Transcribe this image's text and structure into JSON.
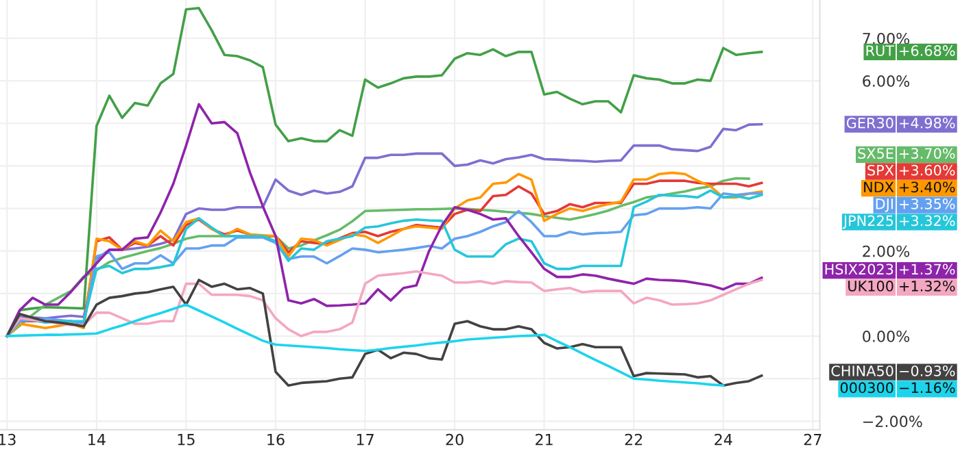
{
  "chart_data": {
    "type": "line",
    "categories": [
      "13",
      null,
      null,
      null,
      null,
      null,
      null,
      "14",
      null,
      null,
      null,
      null,
      null,
      null,
      "15",
      null,
      null,
      null,
      null,
      null,
      null,
      "16",
      null,
      null,
      null,
      null,
      null,
      null,
      "17",
      null,
      null,
      null,
      null,
      null,
      null,
      "20",
      null,
      null,
      null,
      null,
      null,
      null,
      "21",
      null,
      null,
      null,
      null,
      null,
      null,
      "22",
      null,
      null,
      null,
      null,
      null,
      null,
      "24",
      null,
      null,
      null,
      null,
      null,
      null,
      "27"
    ],
    "ylim": [
      -2.2,
      7.9
    ],
    "yticks": [
      {
        "value": -2,
        "label": "−2.00%"
      },
      {
        "value": -1,
        "label": null
      },
      {
        "value": 0,
        "label": "0.00%"
      },
      {
        "value": 1,
        "label": null
      },
      {
        "value": 2,
        "label": "2.00%"
      },
      {
        "value": 3,
        "label": null
      },
      {
        "value": 4,
        "label": null
      },
      {
        "value": 5,
        "label": null
      },
      {
        "value": 6,
        "label": "6.00%"
      },
      {
        "value": 7,
        "label": "7.00%"
      }
    ],
    "grid": true,
    "legend": "right",
    "line_style": "solid",
    "marker": "none",
    "series": [
      {
        "name": "RUT",
        "color": "#43a047",
        "values": [
          0,
          0.61,
          0.65,
          0.68,
          0.67,
          0.66,
          0.65,
          4.94,
          5.65,
          5.13,
          5.48,
          5.42,
          5.94,
          6.16,
          7.68,
          7.71,
          7.19,
          6.61,
          6.58,
          6.48,
          6.32,
          4.97,
          4.58,
          4.65,
          4.58,
          4.58,
          4.84,
          4.71,
          6.03,
          5.84,
          5.94,
          6.06,
          6.1,
          6.1,
          6.13,
          6.52,
          6.65,
          6.61,
          6.74,
          6.58,
          6.68,
          6.68,
          5.68,
          5.74,
          5.58,
          5.45,
          5.52,
          5.52,
          5.26,
          6.13,
          6.06,
          6.03,
          5.94,
          5.94,
          6.03,
          6.0,
          6.77,
          6.61,
          6.65,
          6.68,
          null,
          null,
          null,
          null
        ]
      },
      {
        "name": "GER30",
        "color": "#7e6fd0",
        "values": [
          0,
          0.45,
          0.44,
          0.42,
          0.45,
          0.48,
          0.45,
          1.81,
          2.03,
          2.03,
          2.06,
          2.1,
          2.17,
          2.26,
          2.87,
          3.0,
          2.97,
          2.97,
          3.03,
          3.03,
          3.03,
          3.68,
          3.42,
          3.32,
          3.42,
          3.35,
          3.39,
          3.52,
          4.19,
          4.19,
          4.26,
          4.26,
          4.29,
          4.29,
          4.29,
          4.0,
          4.03,
          4.13,
          4.06,
          4.16,
          4.2,
          4.26,
          4.16,
          4.15,
          4.13,
          4.12,
          4.1,
          4.12,
          4.13,
          4.48,
          4.48,
          4.48,
          4.39,
          4.37,
          4.35,
          4.45,
          4.87,
          4.84,
          4.97,
          4.98,
          null,
          null,
          null,
          null
        ]
      },
      {
        "name": "SX5E",
        "color": "#66bb6a",
        "values": [
          0,
          0.25,
          0.5,
          0.74,
          0.9,
          1.06,
          1.4,
          1.55,
          1.74,
          1.84,
          1.92,
          2.0,
          2.07,
          2.17,
          2.29,
          2.35,
          2.35,
          2.35,
          2.35,
          2.35,
          2.35,
          2.35,
          2.06,
          2.13,
          2.25,
          2.37,
          2.5,
          2.7,
          2.94,
          2.95,
          2.96,
          2.97,
          2.98,
          2.98,
          2.99,
          3.0,
          2.99,
          2.97,
          2.95,
          2.92,
          2.9,
          2.87,
          2.82,
          2.78,
          2.74,
          2.8,
          2.87,
          2.95,
          3.06,
          3.15,
          3.26,
          3.3,
          3.35,
          3.4,
          3.47,
          3.52,
          3.65,
          3.71,
          3.7,
          null,
          null,
          null,
          null,
          null
        ]
      },
      {
        "name": "SPX",
        "color": "#e53935",
        "values": [
          0,
          0.35,
          0.35,
          0.35,
          0.35,
          0.35,
          0.29,
          2.23,
          2.32,
          2.03,
          2.19,
          2.13,
          2.35,
          2.13,
          2.61,
          2.74,
          2.52,
          2.39,
          2.48,
          2.39,
          2.35,
          2.35,
          1.97,
          2.23,
          2.19,
          2.16,
          2.3,
          2.42,
          2.45,
          2.35,
          2.45,
          2.52,
          2.61,
          2.58,
          2.55,
          2.87,
          2.97,
          2.94,
          3.29,
          3.32,
          3.52,
          3.35,
          2.87,
          2.94,
          3.1,
          3.03,
          3.13,
          3.13,
          3.13,
          3.58,
          3.58,
          3.65,
          3.65,
          3.65,
          3.6,
          3.58,
          3.58,
          3.58,
          3.52,
          3.6,
          null,
          null,
          null,
          null
        ]
      },
      {
        "name": "NDX",
        "color": "#ff9800",
        "values": [
          0,
          0.29,
          0.24,
          0.19,
          0.24,
          0.29,
          0.19,
          2.29,
          2.23,
          2.03,
          2.23,
          2.13,
          2.48,
          2.23,
          2.68,
          2.77,
          2.52,
          2.35,
          2.52,
          2.39,
          2.37,
          2.35,
          1.87,
          2.29,
          2.26,
          2.13,
          2.26,
          2.39,
          2.35,
          2.19,
          2.35,
          2.52,
          2.58,
          2.55,
          2.52,
          3.0,
          3.19,
          3.26,
          3.58,
          3.61,
          3.81,
          3.68,
          2.71,
          2.87,
          3.0,
          2.94,
          3.03,
          3.1,
          3.16,
          3.68,
          3.68,
          3.81,
          3.84,
          3.81,
          3.65,
          3.52,
          3.26,
          3.26,
          3.35,
          3.4,
          null,
          null,
          null,
          null
        ]
      },
      {
        "name": "DJI",
        "color": "#64a0f0",
        "values": [
          0,
          0.35,
          0.38,
          0.42,
          0.38,
          0.35,
          0.29,
          1.87,
          1.97,
          1.58,
          1.71,
          1.71,
          1.9,
          1.71,
          2.06,
          2.06,
          2.13,
          2.13,
          2.32,
          2.32,
          2.32,
          2.19,
          1.81,
          1.87,
          1.87,
          1.71,
          1.88,
          2.06,
          2.03,
          1.97,
          2.0,
          2.03,
          2.07,
          2.12,
          2.06,
          2.29,
          2.35,
          2.45,
          2.58,
          2.68,
          2.94,
          2.68,
          2.35,
          2.35,
          2.45,
          2.39,
          2.42,
          2.43,
          2.45,
          2.84,
          2.87,
          3.0,
          3.0,
          3.0,
          3.03,
          3.0,
          3.35,
          3.32,
          3.35,
          3.35,
          null,
          null,
          null,
          null
        ]
      },
      {
        "name": "JPN225",
        "color": "#26c6da",
        "values": [
          0,
          0.42,
          0.37,
          0.32,
          0.34,
          0.35,
          0.35,
          1.58,
          1.65,
          1.48,
          1.58,
          1.58,
          1.62,
          1.68,
          2.52,
          2.77,
          2.55,
          2.35,
          2.35,
          2.35,
          2.35,
          2.23,
          1.77,
          2.06,
          2.03,
          2.23,
          2.29,
          2.35,
          2.55,
          2.58,
          2.65,
          2.71,
          2.74,
          2.72,
          2.71,
          2.03,
          1.87,
          1.87,
          1.87,
          2.16,
          2.29,
          2.23,
          1.71,
          1.58,
          1.58,
          1.65,
          1.65,
          1.65,
          1.65,
          3.03,
          3.16,
          3.32,
          3.3,
          3.29,
          3.26,
          3.42,
          3.26,
          3.29,
          3.23,
          3.32,
          null,
          null,
          null,
          null
        ]
      },
      {
        "name": "HSIX2023",
        "color": "#8e24aa",
        "values": [
          0,
          0.61,
          0.9,
          0.74,
          0.74,
          1.04,
          1.38,
          1.71,
          2.03,
          2.03,
          2.29,
          2.32,
          2.9,
          3.58,
          4.48,
          5.45,
          5.0,
          5.03,
          4.77,
          3.84,
          3.05,
          2.35,
          0.84,
          0.77,
          0.87,
          0.71,
          0.72,
          0.74,
          0.77,
          1.1,
          0.84,
          1.13,
          1.19,
          2.0,
          2.6,
          3.03,
          2.97,
          2.87,
          2.74,
          2.77,
          2.35,
          1.97,
          1.58,
          1.39,
          1.39,
          1.45,
          1.42,
          1.35,
          1.29,
          1.23,
          1.35,
          1.32,
          1.31,
          1.29,
          1.24,
          1.19,
          1.1,
          1.23,
          1.23,
          1.37,
          null,
          null,
          null,
          null
        ]
      },
      {
        "name": "UK100",
        "color": "#f4a7c0",
        "values": [
          0,
          0.42,
          0.38,
          0.35,
          0.3,
          0.26,
          0.26,
          0.55,
          0.55,
          0.42,
          0.29,
          0.29,
          0.35,
          0.35,
          1.23,
          1.23,
          0.97,
          0.97,
          0.97,
          0.94,
          0.84,
          0.42,
          0.16,
          0,
          0.1,
          0.1,
          0.16,
          0.32,
          1.23,
          1.42,
          1.45,
          1.48,
          1.52,
          1.47,
          1.42,
          1.26,
          1.26,
          1.29,
          1.23,
          1.29,
          1.27,
          1.26,
          1.06,
          1.1,
          1.13,
          1.03,
          1.06,
          1.06,
          1.06,
          0.77,
          0.9,
          0.84,
          0.74,
          0.75,
          0.77,
          0.84,
          0.97,
          1.1,
          1.23,
          1.32,
          null,
          null,
          null,
          null
        ]
      },
      {
        "name": "CHINA50",
        "color": "#424242",
        "values": [
          0,
          0.52,
          0.43,
          0.35,
          0.32,
          0.28,
          0.23,
          0.74,
          0.9,
          0.94,
          1.0,
          1.03,
          1.1,
          1.16,
          0.74,
          1.32,
          1.16,
          1.23,
          1.1,
          1.13,
          1.0,
          -0.84,
          -1.16,
          -1.1,
          -1.08,
          -1.06,
          -1.0,
          -0.97,
          -0.42,
          -0.32,
          -0.52,
          -0.39,
          -0.42,
          -0.52,
          -0.55,
          0.29,
          0.35,
          0.23,
          0.16,
          0.16,
          0.23,
          0.16,
          -0.16,
          -0.29,
          -0.26,
          -0.19,
          -0.26,
          -0.26,
          -0.26,
          -0.94,
          -0.87,
          -0.88,
          -0.89,
          -0.9,
          -0.97,
          -0.94,
          -1.16,
          -1.1,
          -1.06,
          -0.93,
          null,
          null,
          null,
          null
        ]
      },
      {
        "name": "000300",
        "color": "#1cd4ec",
        "values": [
          0,
          0.01,
          0.02,
          0.03,
          0.03,
          0.04,
          0.05,
          0.06,
          0.16,
          0.25,
          0.35,
          0.45,
          0.54,
          0.64,
          0.74,
          0.6,
          0.46,
          0.32,
          0.17,
          0.03,
          -0.11,
          -0.2,
          -0.22,
          -0.24,
          -0.26,
          -0.28,
          -0.31,
          -0.33,
          -0.35,
          -0.32,
          -0.28,
          -0.25,
          -0.22,
          -0.18,
          -0.15,
          -0.12,
          -0.08,
          -0.06,
          -0.04,
          -0.02,
          0,
          0.01,
          0.03,
          -0.12,
          -0.26,
          -0.41,
          -0.56,
          -0.7,
          -0.85,
          -1.0,
          -1.02,
          -1.05,
          -1.07,
          -1.09,
          -1.11,
          -1.14,
          -1.16,
          null,
          null,
          null,
          null,
          null,
          null,
          null
        ]
      }
    ],
    "annotations": [
      "+6.68%",
      "+4.98%",
      "+3.70%",
      "+3.60%",
      "+3.40%",
      "+3.35%",
      "+3.32%",
      "+1.37%",
      "+1.32%",
      "−0.93%",
      "−1.16%"
    ]
  }
}
